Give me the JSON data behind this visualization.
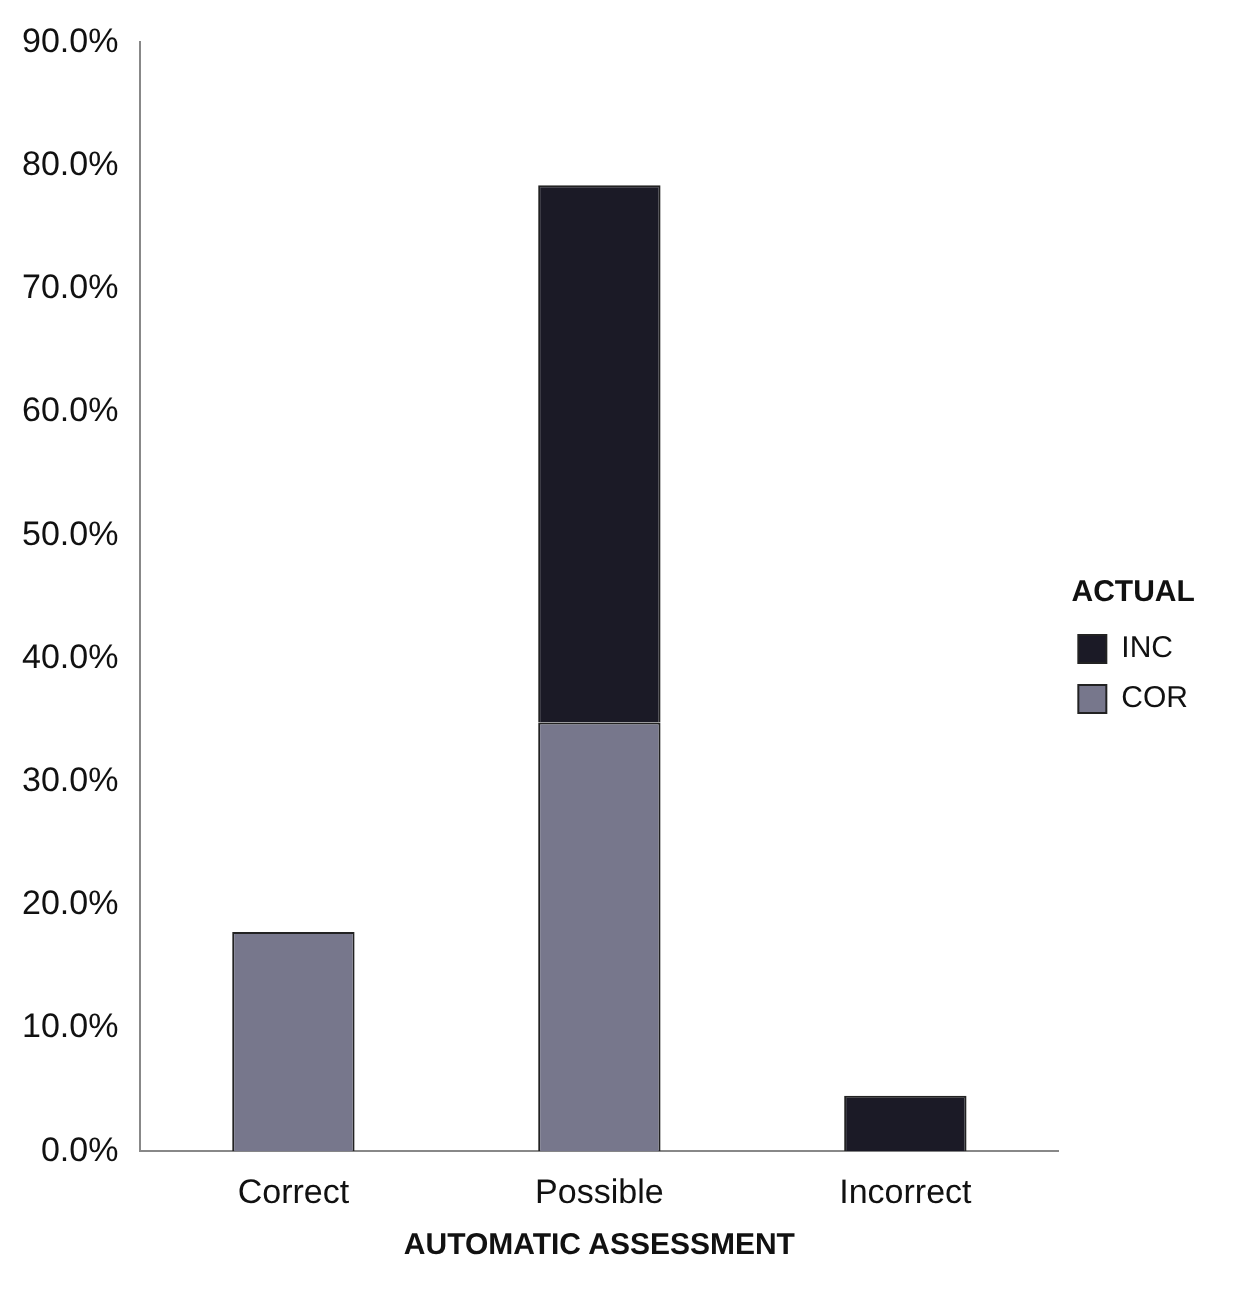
{
  "chart_data": {
    "type": "bar",
    "stacked": true,
    "xlabel": "AUTOMATIC ASSESSMENT",
    "legend_title": "ACTUAL",
    "legend": "right",
    "grid": false,
    "categories": [
      "Correct",
      "Possible",
      "Incorrect"
    ],
    "series": [
      {
        "name": "COR",
        "color": "#77778c",
        "values": [
          17.8,
          34.8,
          0
        ]
      },
      {
        "name": "INC",
        "color": "#1b1a26",
        "values": [
          0,
          43.6,
          4.5
        ]
      }
    ],
    "ylim": [
      0,
      90
    ],
    "yticks": [
      {
        "value": 0,
        "label": "0.0%"
      },
      {
        "value": 10,
        "label": "10.0%"
      },
      {
        "value": 20,
        "label": "20.0%"
      },
      {
        "value": 30,
        "label": "30.0%"
      },
      {
        "value": 40,
        "label": "40.0%"
      },
      {
        "value": 50,
        "label": "50.0%"
      },
      {
        "value": 60,
        "label": "60.0%"
      },
      {
        "value": 70,
        "label": "70.0%"
      },
      {
        "value": 80,
        "label": "80.0%"
      },
      {
        "value": 90,
        "label": "90.0%"
      }
    ]
  }
}
